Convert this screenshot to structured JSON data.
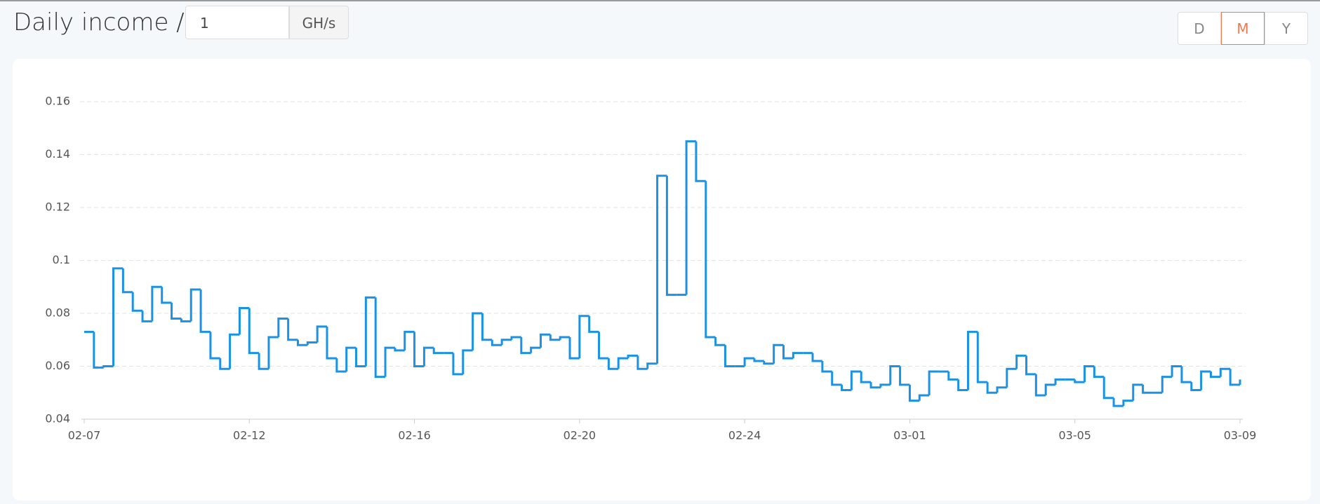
{
  "header": {
    "title": "Daily income /",
    "hashrate": "1",
    "unit": "GH/s",
    "periods": [
      "D",
      "M",
      "Y"
    ]
  },
  "chart_data": {
    "type": "step-line",
    "color": "#1a93e6",
    "grid": true,
    "categories": [
      "02-07",
      null,
      null,
      null,
      null,
      null,
      null,
      null,
      null,
      null,
      null,
      null,
      null,
      null,
      null,
      null,
      null,
      "02-12",
      null,
      null,
      null,
      null,
      null,
      null,
      null,
      null,
      null,
      null,
      null,
      null,
      null,
      null,
      null,
      null,
      "02-16",
      null,
      null,
      null,
      null,
      null,
      null,
      null,
      null,
      null,
      null,
      null,
      null,
      null,
      null,
      null,
      null,
      "02-20",
      null,
      null,
      null,
      null,
      null,
      null,
      null,
      null,
      null,
      null,
      null,
      null,
      null,
      null,
      null,
      null,
      "02-24",
      null,
      null,
      null,
      null,
      null,
      null,
      null,
      null,
      null,
      null,
      null,
      null,
      null,
      null,
      null,
      null,
      "03-01",
      null,
      null,
      null,
      null,
      null,
      null,
      null,
      null,
      null,
      null,
      null,
      null,
      null,
      null,
      null,
      null,
      "03-05",
      null,
      null,
      null,
      null,
      null,
      null,
      null,
      null,
      null,
      null,
      null,
      null,
      null,
      null,
      null,
      null,
      "03-09"
    ],
    "values": [
      0.073,
      0.0595,
      0.06,
      0.097,
      0.088,
      0.081,
      0.077,
      0.09,
      0.084,
      0.078,
      0.077,
      0.089,
      0.073,
      0.063,
      0.059,
      0.072,
      0.082,
      0.065,
      0.059,
      0.071,
      0.078,
      0.07,
      0.068,
      0.069,
      0.075,
      0.063,
      0.058,
      0.067,
      0.06,
      0.086,
      0.056,
      0.067,
      0.066,
      0.073,
      0.06,
      0.067,
      0.065,
      0.065,
      0.057,
      0.066,
      0.08,
      0.07,
      0.068,
      0.07,
      0.071,
      0.065,
      0.067,
      0.072,
      0.07,
      0.071,
      0.063,
      0.079,
      0.073,
      0.063,
      0.059,
      0.063,
      0.064,
      0.059,
      0.061,
      0.132,
      0.087,
      0.087,
      0.145,
      0.13,
      0.071,
      0.068,
      0.06,
      0.06,
      0.063,
      0.062,
      0.061,
      0.068,
      0.063,
      0.065,
      0.065,
      0.062,
      0.058,
      0.053,
      0.051,
      0.058,
      0.054,
      0.052,
      0.053,
      0.06,
      0.053,
      0.047,
      0.049,
      0.058,
      0.058,
      0.055,
      0.051,
      0.073,
      0.054,
      0.05,
      0.052,
      0.059,
      0.064,
      0.057,
      0.049,
      0.053,
      0.055,
      0.055,
      0.054,
      0.06,
      0.056,
      0.048,
      0.045,
      0.047,
      0.053,
      0.05,
      0.05,
      0.056,
      0.06,
      0.054,
      0.051,
      0.058,
      0.056,
      0.059,
      0.053,
      0.055
    ],
    "ylim": [
      0.04,
      0.16
    ],
    "yticks": [
      0.04,
      0.06,
      0.08,
      0.1,
      0.12,
      0.14,
      0.16
    ]
  }
}
